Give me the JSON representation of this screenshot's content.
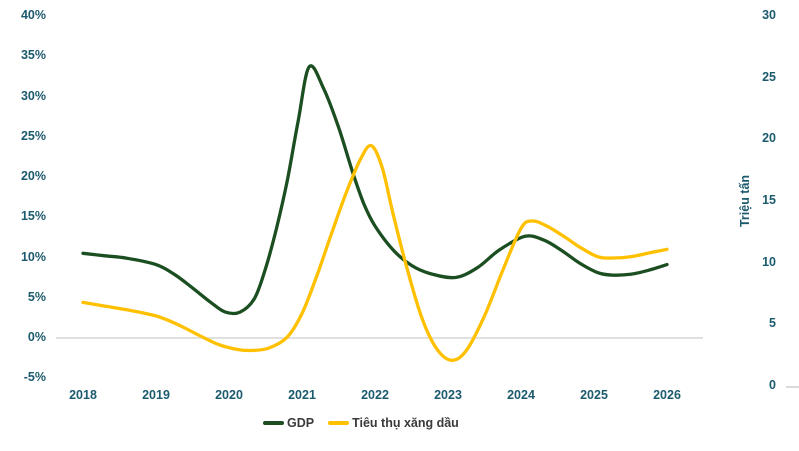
{
  "axes": {
    "left": {
      "ticks": [
        "40%",
        "35%",
        "30%",
        "25%",
        "20%",
        "15%",
        "10%",
        "5%",
        "0%",
        "-5%"
      ]
    },
    "right": {
      "ticks": [
        "30",
        "25",
        "20",
        "15",
        "10",
        "5",
        "0"
      ],
      "title": "Triệu tấn"
    },
    "x": {
      "labels": [
        "2018",
        "2019",
        "2020",
        "2021",
        "2022",
        "2023",
        "2024",
        "2025",
        "2026"
      ]
    }
  },
  "legend": {
    "items": [
      {
        "label": "GDP",
        "color": "#1b4e20"
      },
      {
        "label": "Tiêu thụ xăng dầu",
        "color": "#ffc000"
      }
    ]
  },
  "colors": {
    "axis_text": "#1c5a6e",
    "legend_text": "#3a3a3a",
    "gridline": "#e0e0e0",
    "gdp_line": "#1b4e20",
    "fuel_line": "#ffc000",
    "background": "#ffffff"
  },
  "chart_data": {
    "type": "line",
    "title": "",
    "x_range": [
      2018,
      2026
    ],
    "x_tick_years": [
      2018,
      2019,
      2020,
      2021,
      2022,
      2023,
      2024,
      2025,
      2026
    ],
    "left_axis": {
      "unit": "%",
      "range": [
        -5,
        40
      ],
      "tick_step": 5
    },
    "right_axis": {
      "unit": "Triệu tấn",
      "range": [
        0,
        30
      ],
      "tick_step": 5
    },
    "gridlines": "horizontal line at 0% only",
    "legend_position": "bottom-center",
    "series": [
      {
        "name": "GDP",
        "axis": "left",
        "unit": "%",
        "color": "#1b4e20",
        "points": [
          [
            2018.0,
            10.4
          ],
          [
            2018.3,
            10.1
          ],
          [
            2018.6,
            9.8
          ],
          [
            2019.0,
            9.0
          ],
          [
            2019.25,
            7.8
          ],
          [
            2019.5,
            6.1
          ],
          [
            2019.75,
            4.3
          ],
          [
            2019.95,
            3.1
          ],
          [
            2020.15,
            3.1
          ],
          [
            2020.35,
            4.8
          ],
          [
            2020.5,
            8.5
          ],
          [
            2020.65,
            13.5
          ],
          [
            2020.8,
            19.5
          ],
          [
            2020.95,
            27.0
          ],
          [
            2021.1,
            33.6
          ],
          [
            2021.3,
            30.8
          ],
          [
            2021.5,
            26.1
          ],
          [
            2021.7,
            20.3
          ],
          [
            2021.85,
            16.5
          ],
          [
            2022.0,
            13.8
          ],
          [
            2022.25,
            10.8
          ],
          [
            2022.5,
            8.9
          ],
          [
            2022.75,
            7.9
          ],
          [
            2023.1,
            7.4
          ],
          [
            2023.4,
            8.6
          ],
          [
            2023.7,
            10.8
          ],
          [
            2024.05,
            12.5
          ],
          [
            2024.3,
            12.1
          ],
          [
            2024.55,
            10.8
          ],
          [
            2024.8,
            9.2
          ],
          [
            2025.05,
            8.0
          ],
          [
            2025.25,
            7.7
          ],
          [
            2025.5,
            7.8
          ],
          [
            2025.75,
            8.3
          ],
          [
            2026.0,
            9.0
          ]
        ]
      },
      {
        "name": "Tiêu thụ xăng dầu",
        "axis": "right",
        "unit": "triệu tấn",
        "color": "#ffc000",
        "points": [
          [
            2018.0,
            6.7
          ],
          [
            2018.3,
            6.4
          ],
          [
            2018.6,
            6.1
          ],
          [
            2019.0,
            5.6
          ],
          [
            2019.3,
            4.9
          ],
          [
            2019.6,
            4.0
          ],
          [
            2019.85,
            3.3
          ],
          [
            2020.1,
            2.9
          ],
          [
            2020.3,
            2.8
          ],
          [
            2020.55,
            3.0
          ],
          [
            2020.8,
            3.9
          ],
          [
            2021.0,
            5.8
          ],
          [
            2021.2,
            8.8
          ],
          [
            2021.4,
            12.2
          ],
          [
            2021.6,
            15.5
          ],
          [
            2021.8,
            18.3
          ],
          [
            2021.95,
            19.4
          ],
          [
            2022.1,
            17.6
          ],
          [
            2022.25,
            13.8
          ],
          [
            2022.45,
            9.2
          ],
          [
            2022.65,
            5.3
          ],
          [
            2022.85,
            2.9
          ],
          [
            2023.05,
            2.0
          ],
          [
            2023.25,
            2.8
          ],
          [
            2023.5,
            5.6
          ],
          [
            2023.75,
            9.3
          ],
          [
            2024.0,
            12.7
          ],
          [
            2024.15,
            13.3
          ],
          [
            2024.35,
            12.9
          ],
          [
            2024.6,
            12.0
          ],
          [
            2024.8,
            11.2
          ],
          [
            2025.05,
            10.4
          ],
          [
            2025.25,
            10.3
          ],
          [
            2025.5,
            10.4
          ],
          [
            2025.75,
            10.7
          ],
          [
            2026.0,
            11.0
          ]
        ]
      }
    ]
  }
}
